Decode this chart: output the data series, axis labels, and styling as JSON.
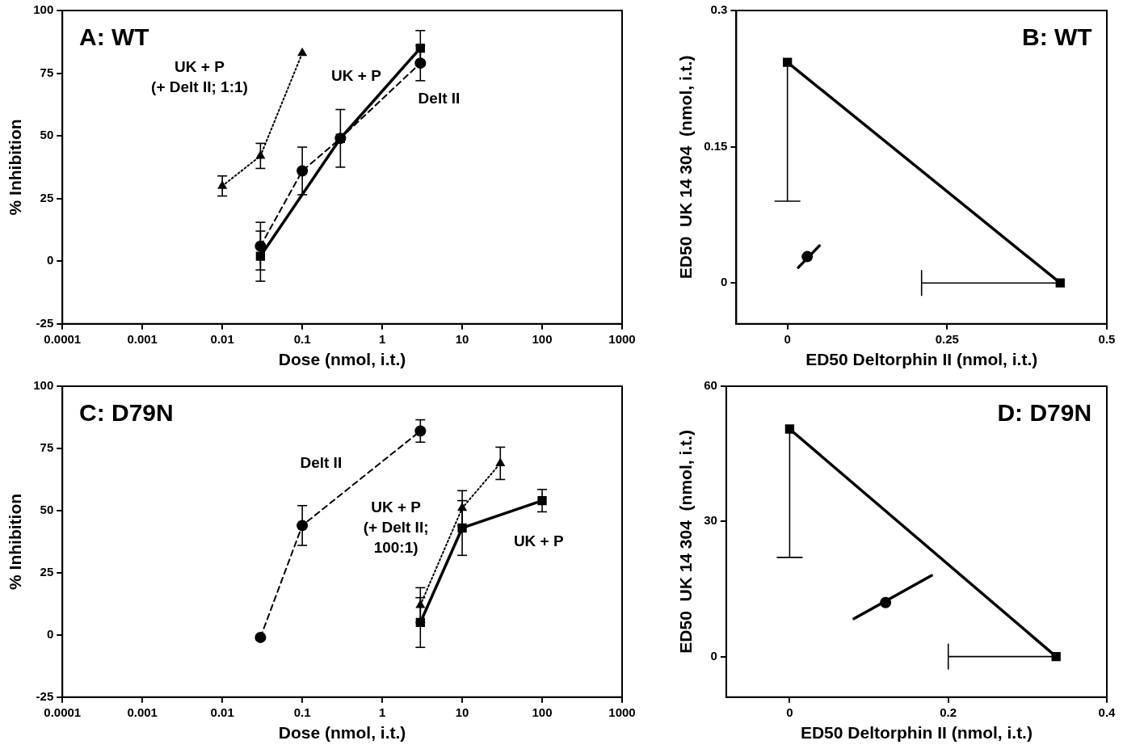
{
  "chart_data": [
    {
      "type": "line",
      "title": "A: WT",
      "xlabel": "Dose (nmol, i.t.)",
      "ylabel": "% Inhibition",
      "log": "x",
      "xlim": [
        0.0001,
        1000
      ],
      "xticks": [
        0.0001,
        0.001,
        0.01,
        0.1,
        1,
        10,
        100,
        1000
      ],
      "ylim": [
        -25,
        100
      ],
      "yticks": [
        -25,
        0,
        25,
        50,
        75,
        100
      ],
      "series": [
        {
          "name": "UK + P\n(+ Delt II; 1:1)",
          "color": "#000000",
          "marker": "triangle",
          "line_style": "dotted",
          "x": [
            0.01,
            0.03,
            0.1
          ],
          "values": [
            30,
            42,
            83
          ],
          "errors": [
            4,
            5,
            null
          ]
        },
        {
          "name": "Delt II",
          "color": "#000000",
          "marker": "circle",
          "line_style": "dashed",
          "x": [
            0.03,
            0.1,
            0.3,
            3
          ],
          "values": [
            6,
            36,
            49,
            79
          ],
          "errors": [
            9.5,
            9.5,
            null,
            7
          ]
        },
        {
          "name": "UK + P",
          "color": "#000000",
          "marker": "square",
          "line_style": "solid",
          "x": [
            0.03,
            0.3,
            3
          ],
          "values": [
            2,
            49,
            85
          ],
          "errors": [
            10,
            11.5,
            7
          ]
        }
      ]
    },
    {
      "type": "line",
      "title": "B: WT",
      "xlabel": "ED50 Deltorphin II (nmol, i.t.)",
      "ylabel": "ED50  UK 14 304  (nmol, i.t.)",
      "xlim": [
        -0.08,
        0.5
      ],
      "xticks": [
        0,
        0.25,
        0.5
      ],
      "ylim": [
        -0.045,
        0.3
      ],
      "yticks": [
        0,
        0.15,
        0.3
      ],
      "series": [
        {
          "color": "#000000",
          "marker": "square",
          "line_style": "solid",
          "x": [
            0,
            0.427
          ],
          "values": [
            0.243,
            0
          ],
          "errors": [
            [
              0.09,
              0.243
            ],
            null
          ],
          "xerrors": [
            null,
            [
              0.21,
              0.427
            ]
          ]
        },
        {
          "type": "scatter",
          "color": "#000000",
          "marker": "circle",
          "x": [
            0.031
          ],
          "values": [
            0.029
          ]
        },
        {
          "color": "#000000",
          "marker": "none",
          "line_style": "solid",
          "x": [
            0.017,
            0.05
          ],
          "values": [
            0.017,
            0.041
          ]
        }
      ]
    },
    {
      "type": "line",
      "title": "C: D79N",
      "xlabel": "Dose (nmol, i.t.)",
      "ylabel": "% Inhibition",
      "log": "x",
      "xlim": [
        0.0001,
        1000
      ],
      "xticks": [
        0.0001,
        0.001,
        0.01,
        0.1,
        1,
        10,
        100,
        1000
      ],
      "ylim": [
        -25,
        100
      ],
      "yticks": [
        -25,
        0,
        25,
        50,
        75,
        100
      ],
      "series": [
        {
          "name": "Delt II",
          "color": "#000000",
          "marker": "circle",
          "line_style": "dashed",
          "x": [
            0.03,
            0.1,
            3
          ],
          "values": [
            -1,
            44,
            82
          ],
          "errors": [
            null,
            8,
            4.5
          ]
        },
        {
          "name": "UK + P\n(+ Delt II;\n100:1)",
          "color": "#000000",
          "marker": "triangle",
          "line_style": "dotted",
          "x": [
            3,
            10,
            30
          ],
          "values": [
            12,
            51,
            69
          ],
          "errors": [
            7,
            7,
            6.5
          ]
        },
        {
          "name": "UK + P",
          "color": "#000000",
          "marker": "square",
          "line_style": "solid",
          "x": [
            3,
            10,
            100
          ],
          "values": [
            5,
            43,
            54
          ],
          "errors": [
            10,
            11,
            4.5
          ]
        }
      ]
    },
    {
      "type": "line",
      "title": "D: D79N",
      "xlabel": "ED50 Deltorphin II (nmol, i.t.)",
      "ylabel": "ED50  UK 14 304  (nmol, i.t.)",
      "xlim": [
        -0.08,
        0.4
      ],
      "xticks": [
        0,
        0.2,
        0.4
      ],
      "ylim": [
        -9,
        60
      ],
      "yticks": [
        0,
        30,
        60
      ],
      "series": [
        {
          "color": "#000000",
          "marker": "square",
          "line_style": "solid",
          "x": [
            0,
            0.336
          ],
          "values": [
            50.5,
            0
          ],
          "errors": [
            [
              22,
              50.5
            ],
            null
          ],
          "xerrors": [
            null,
            [
              0.2,
              0.336
            ]
          ]
        },
        {
          "type": "scatter",
          "color": "#000000",
          "marker": "circle",
          "x": [
            0.121
          ],
          "values": [
            12
          ]
        },
        {
          "color": "#000000",
          "marker": "none",
          "line_style": "solid",
          "x": [
            0.081,
            0.179
          ],
          "values": [
            8.4,
            18
          ]
        }
      ]
    }
  ]
}
